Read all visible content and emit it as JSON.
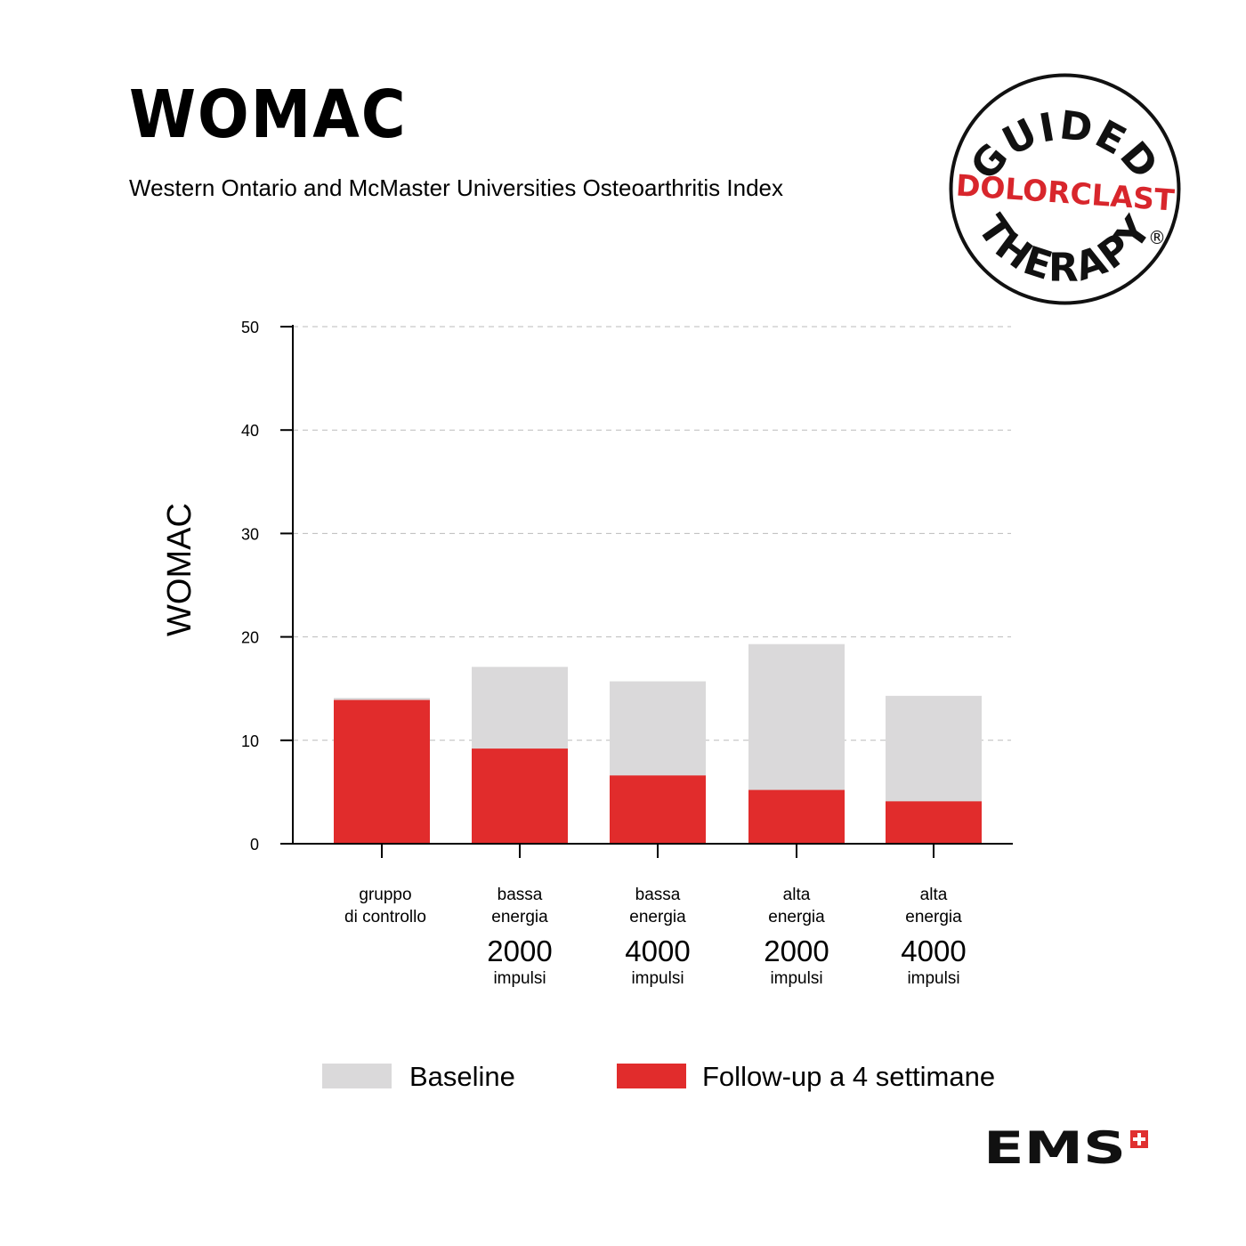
{
  "header": {
    "title": "WOMAC",
    "subtitle": "Western Ontario and McMaster Universities Osteoarthritis Index"
  },
  "seal": {
    "top_text": "GUIDED",
    "middle_text": "DOLORCLAST",
    "bottom_text": "THERAPY",
    "registered": "®"
  },
  "brand_logo": {
    "text": "EMS",
    "cross_color": "#e03030"
  },
  "colors": {
    "baseline": "#dad9da",
    "followup": "#e12c2c",
    "grid": "#bbbbbb"
  },
  "chart_data": {
    "type": "bar",
    "ylabel": "WOMAC",
    "ylim": [
      0,
      50
    ],
    "yticks": [
      0,
      10,
      20,
      30,
      40,
      50
    ],
    "grid": true,
    "categories": [
      {
        "lines": [
          "gruppo",
          "di controllo"
        ],
        "dose": "",
        "unit": ""
      },
      {
        "lines": [
          "bassa",
          "energia"
        ],
        "dose": "2000",
        "unit": "impulsi"
      },
      {
        "lines": [
          "bassa",
          "energia"
        ],
        "dose": "4000",
        "unit": "impulsi"
      },
      {
        "lines": [
          "alta",
          "energia"
        ],
        "dose": "2000",
        "unit": "impulsi"
      },
      {
        "lines": [
          "alta",
          "energia"
        ],
        "dose": "4000",
        "unit": "impulsi"
      }
    ],
    "series": [
      {
        "name": "Baseline",
        "color": "#dad9da",
        "values": [
          14.1,
          17.1,
          15.7,
          19.3,
          14.3
        ]
      },
      {
        "name": "Follow-up a 4 settimane",
        "color": "#e12c2c",
        "values": [
          13.9,
          9.2,
          6.6,
          5.2,
          4.1
        ]
      }
    ],
    "legend_position": "bottom"
  }
}
